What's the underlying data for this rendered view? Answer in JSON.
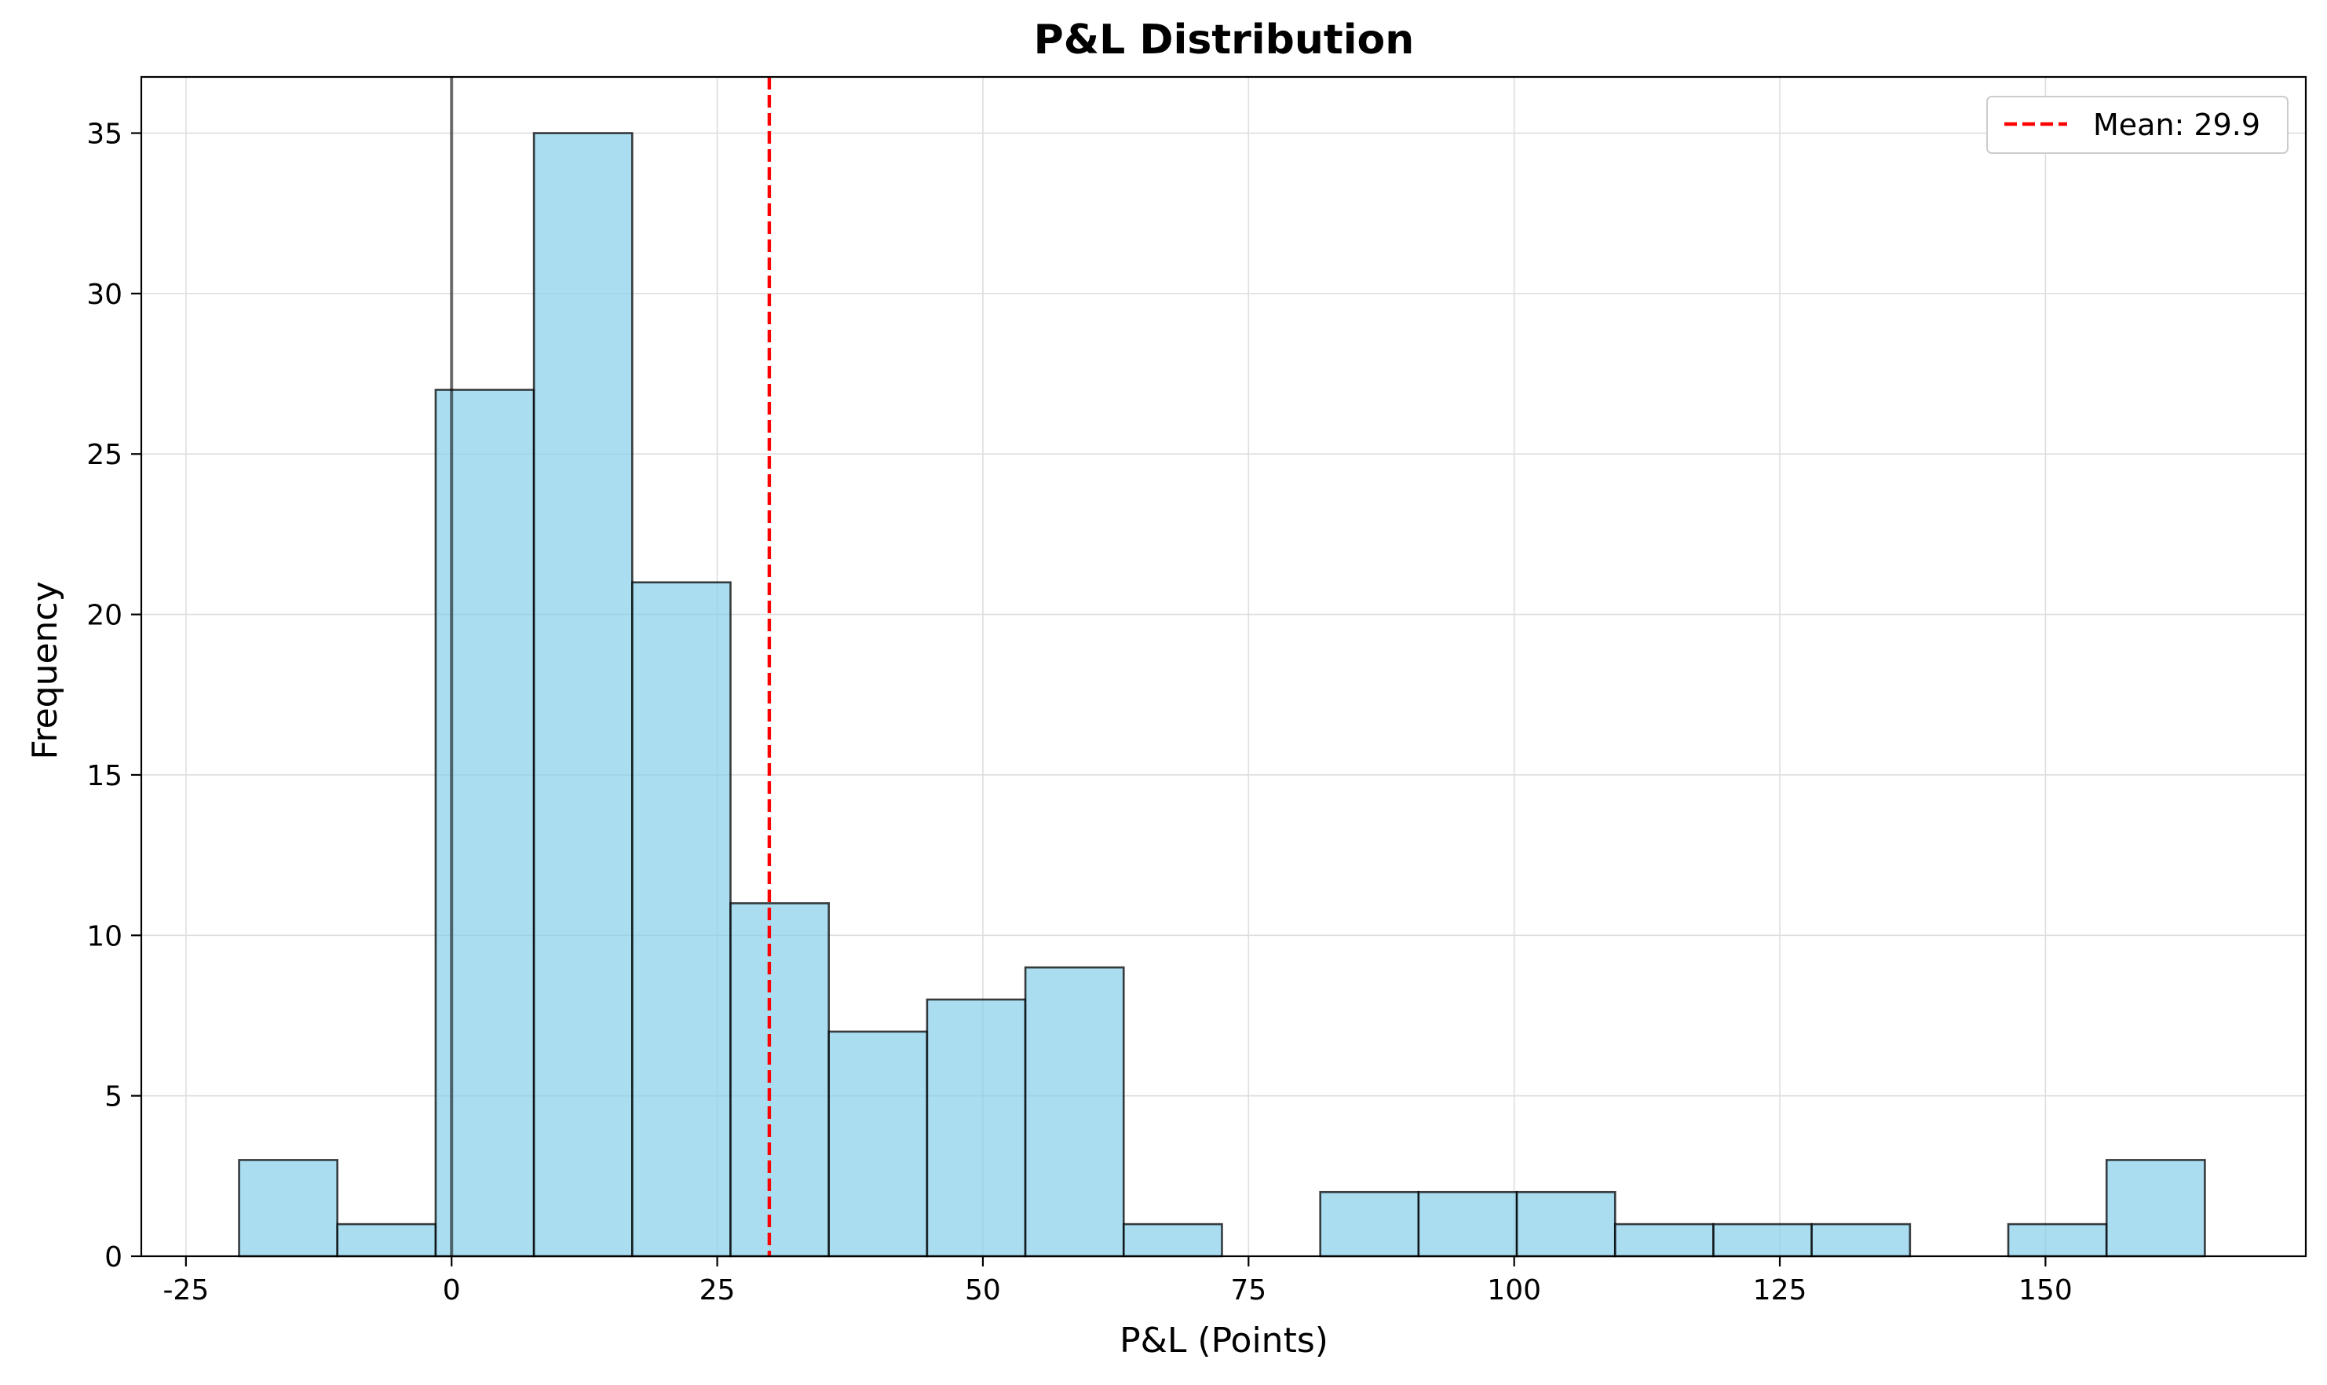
{
  "chart_data": {
    "type": "bar",
    "title": "P&L Distribution",
    "xlabel": "P&L (Points)",
    "ylabel": "Frequency",
    "xlim": [
      -29.2,
      174.5
    ],
    "ylim": [
      0,
      36.75
    ],
    "x_ticks": [
      -25,
      0,
      25,
      50,
      75,
      100,
      125,
      150
    ],
    "y_ticks": [
      0,
      5,
      10,
      15,
      20,
      25,
      30,
      35
    ],
    "grid": true,
    "bin_edges": [
      -20.0,
      -10.75,
      -1.5,
      7.75,
      17.0,
      26.25,
      35.5,
      44.75,
      54.0,
      63.25,
      72.5,
      81.75,
      91.0,
      100.25,
      109.5,
      118.75,
      128.0,
      137.25,
      146.5,
      155.75,
      165.0
    ],
    "values": [
      3,
      1,
      27,
      35,
      21,
      11,
      7,
      8,
      9,
      1,
      0,
      2,
      2,
      2,
      1,
      1,
      1,
      0,
      1,
      3
    ],
    "bar_color": "#87CEEB",
    "zero_line": 0,
    "mean": 29.9,
    "mean_color": "#FF0000",
    "legend": {
      "position": "top-right",
      "entries": [
        "Mean: 29.9"
      ]
    }
  }
}
